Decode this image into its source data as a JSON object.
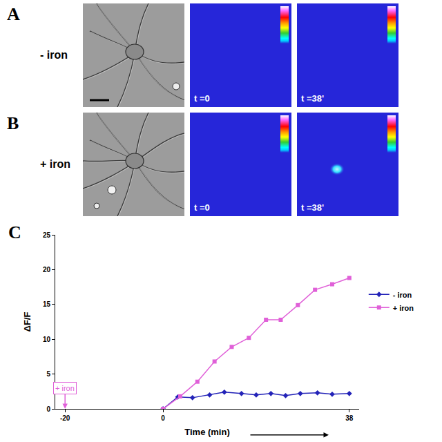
{
  "panels": [
    {
      "label": "A",
      "condition": "- iron",
      "frames": [
        {
          "time": "t =0",
          "signal": false
        },
        {
          "time": "t =38'",
          "signal": false
        }
      ]
    },
    {
      "label": "B",
      "condition": "+ iron",
      "frames": [
        {
          "time": "t =0",
          "signal": false
        },
        {
          "time": "t =38'",
          "signal": true
        }
      ]
    }
  ],
  "chart_label": "C",
  "chart_data": {
    "type": "line",
    "x_label": "Time (min)",
    "y_label": "ΔF/F",
    "xlim": [
      -22,
      40
    ],
    "xticks": [
      -20,
      0,
      38
    ],
    "ylim": [
      0,
      25
    ],
    "yticks": [
      0,
      5,
      10,
      15,
      20,
      25
    ],
    "grid": false,
    "legend": "right",
    "series": [
      {
        "name": "- iron",
        "color": "#2323b8",
        "marker": "diamond",
        "x": [
          0,
          3,
          6,
          9.5,
          12.5,
          16,
          19,
          22,
          25,
          28,
          31.5,
          34.5,
          38
        ],
        "values": [
          0,
          1.7,
          1.6,
          2.0,
          2.4,
          2.2,
          2.0,
          2.2,
          1.9,
          2.2,
          2.3,
          2.1,
          2.2
        ]
      },
      {
        "name": "+ iron",
        "color": "#e060d8",
        "marker": "square",
        "x": [
          0,
          3.5,
          7,
          10.5,
          14,
          17.5,
          21,
          24,
          27.5,
          31,
          34.5,
          38
        ],
        "values": [
          0,
          1.8,
          3.9,
          6.8,
          8.9,
          10.2,
          12.8,
          12.8,
          14.9,
          17.1,
          17.9,
          18.8
        ]
      }
    ],
    "annotations": [
      {
        "text": "+ iron",
        "x": -20,
        "y": 0,
        "color": "#e060d8"
      }
    ]
  }
}
